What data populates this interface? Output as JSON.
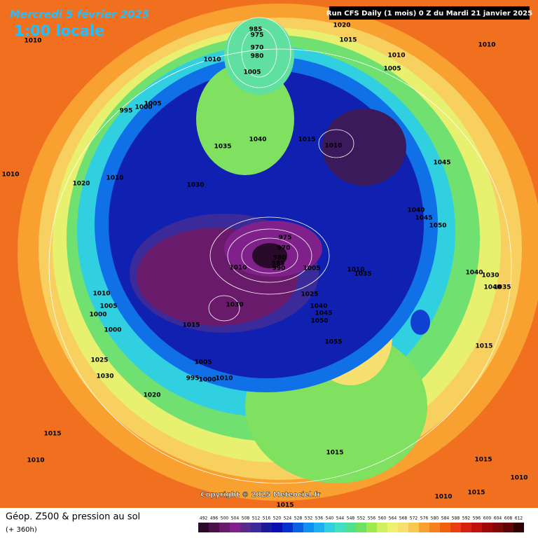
{
  "header": {
    "date": "Mercredi 5 février 2025",
    "time": "1:00 locale",
    "run": "Run CFS Daily (1 mois) 0 Z du Mardi 21 janvier 2025"
  },
  "copyright": "Copyright © 2025 Meteociel.fr",
  "legend": {
    "title": "Géop. Z500 & pression au sol",
    "lead": "(+ 360h)"
  },
  "colorbar": {
    "ticks": [
      492,
      496,
      500,
      504,
      508,
      512,
      516,
      520,
      524,
      528,
      532,
      536,
      540,
      544,
      548,
      552,
      556,
      560,
      564,
      568,
      572,
      576,
      580,
      584,
      588,
      592,
      596,
      600,
      604,
      608,
      612
    ],
    "colors": [
      "#2a0a2a",
      "#4b0f4b",
      "#6a1a6a",
      "#80208a",
      "#5a2a8a",
      "#3a2a9a",
      "#1a1a9a",
      "#0a10b0",
      "#0530d0",
      "#0a60e0",
      "#1090f0",
      "#20b0f0",
      "#30d0e0",
      "#40e0c0",
      "#50e090",
      "#70e060",
      "#a0e850",
      "#d0f060",
      "#f0f070",
      "#f8e070",
      "#f8c850",
      "#f8a030",
      "#f88020",
      "#f06010",
      "#e84010",
      "#d82010",
      "#c01010",
      "#a00808",
      "#800808",
      "#600505",
      "#300000"
    ]
  },
  "isobar_labels": [
    985,
    975,
    970,
    980,
    1005,
    1010,
    1010,
    1020,
    1015,
    1010,
    1005,
    1010,
    995,
    1000,
    1005,
    1035,
    1040,
    1015,
    1010,
    1045,
    1010,
    1020,
    1010,
    1030,
    1040,
    1045,
    1050,
    975,
    970,
    980,
    985,
    990,
    1010,
    1005,
    1010,
    1035,
    1040,
    1030,
    1040,
    1035,
    1010,
    1025,
    1030,
    1005,
    1000,
    1040,
    1045,
    1050,
    1000,
    1015,
    1055,
    1015,
    1025,
    1005,
    1030,
    995,
    1000,
    1010,
    1020,
    1015,
    1015,
    1010,
    1015,
    1010,
    1015,
    1010,
    1015
  ]
}
